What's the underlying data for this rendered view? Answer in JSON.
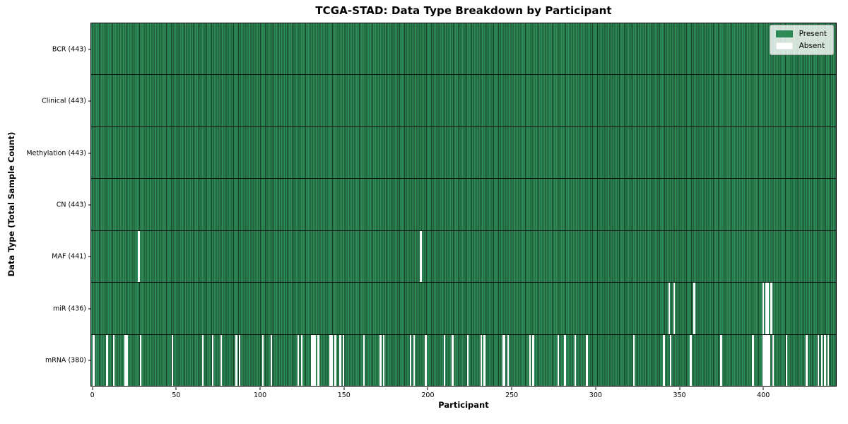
{
  "chart_data": {
    "type": "heatmap",
    "title": "TCGA-STAD: Data Type Breakdown by Participant",
    "xlabel": "Participant",
    "ylabel": "Data Type (Total Sample Count)",
    "n_participants": 443,
    "xlim": [
      -0.5,
      443.5
    ],
    "x_ticks": [
      0,
      50,
      100,
      150,
      200,
      250,
      300,
      350,
      400
    ],
    "grid": false,
    "legend": {
      "position": "upper right",
      "entries": [
        {
          "label": "Present",
          "color": "#2e8b57"
        },
        {
          "label": "Absent",
          "color": "#ffffff"
        }
      ]
    },
    "colors": {
      "present": "#2e8b57",
      "present_edge": "#17402a",
      "absent": "#ffffff",
      "row_divider": "#000000"
    },
    "rows": [
      {
        "name": "BCR",
        "label": "BCR (443)",
        "total": 443,
        "absent": []
      },
      {
        "name": "Clinical",
        "label": "Clinical (443)",
        "total": 443,
        "absent": []
      },
      {
        "name": "Methylation",
        "label": "Methylation (443)",
        "total": 443,
        "absent": []
      },
      {
        "name": "CN",
        "label": "CN (443)",
        "total": 443,
        "absent": []
      },
      {
        "name": "MAF",
        "label": "MAF (441)",
        "total": 441,
        "absent": [
          28,
          196
        ]
      },
      {
        "name": "miR",
        "label": "miR (436)",
        "total": 436,
        "absent": [
          344,
          347,
          359,
          400,
          402,
          403,
          405
        ]
      },
      {
        "name": "mRNA",
        "label": "mRNA (380)",
        "total": 380,
        "absent": [
          1,
          9,
          13,
          20,
          21,
          29,
          48,
          66,
          72,
          77,
          86,
          88,
          102,
          107,
          123,
          125,
          131,
          132,
          133,
          135,
          142,
          143,
          145,
          148,
          150,
          162,
          172,
          174,
          190,
          192,
          199,
          210,
          215,
          224,
          232,
          234,
          245,
          246,
          248,
          261,
          263,
          278,
          282,
          288,
          295,
          323,
          341,
          345,
          357,
          375,
          394,
          400,
          401,
          402,
          403,
          404,
          406,
          414,
          426,
          433,
          435,
          437,
          439
        ]
      }
    ]
  }
}
